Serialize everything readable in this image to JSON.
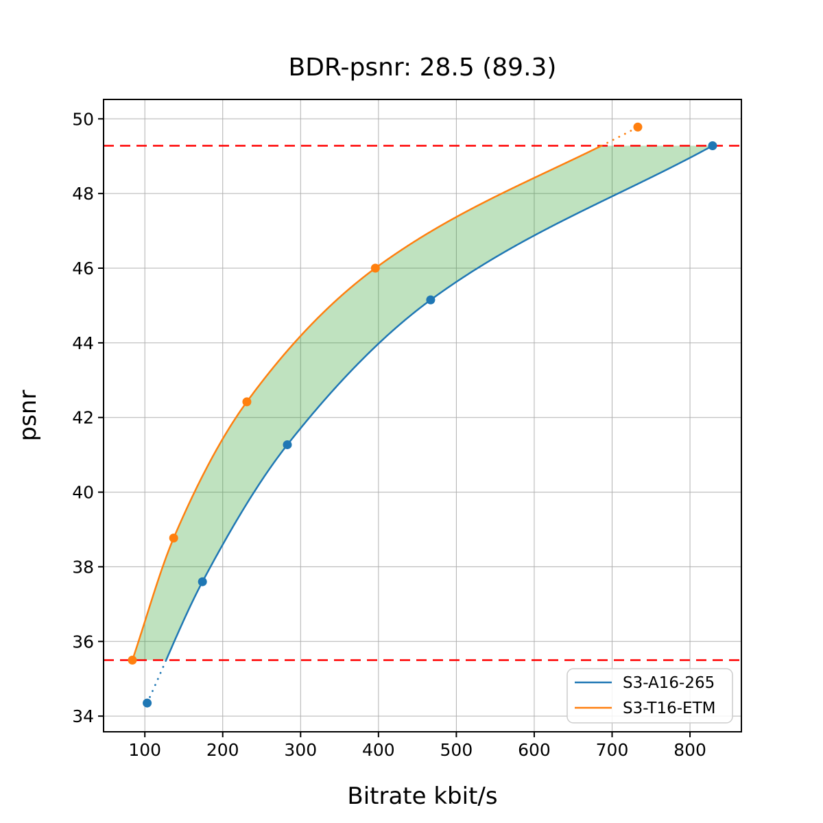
{
  "chart_data": {
    "type": "line",
    "title": "BDR-psnr: 28.5 (89.3)",
    "xlabel": "Bitrate kbit/s",
    "ylabel": "psnr",
    "xlim": [
      47,
      866
    ],
    "ylim": [
      33.58,
      50.52
    ],
    "xticks": [
      100,
      200,
      300,
      400,
      500,
      600,
      700,
      800
    ],
    "yticks": [
      34,
      36,
      38,
      40,
      42,
      44,
      46,
      48,
      50
    ],
    "grid": true,
    "grid_color": "#b0b0b0",
    "legend_position": "lower right",
    "series": [
      {
        "name": "S3-A16-265",
        "color": "#1f77b4",
        "x": [
          103,
          174,
          283,
          467,
          829
        ],
        "y": [
          34.35,
          37.6,
          41.27,
          45.15,
          49.28
        ]
      },
      {
        "name": "S3-T16-ETM",
        "color": "#ff7f0e",
        "x": [
          84,
          137,
          231,
          396,
          733
        ],
        "y": [
          35.5,
          38.77,
          42.42,
          46.0,
          49.78
        ]
      }
    ],
    "integration_bounds": {
      "lower_psnr": 35.5,
      "upper_psnr": 49.28,
      "line_color": "#ff0000",
      "line_style": "dashed"
    },
    "fill_between": {
      "color": "#2ca02c",
      "opacity": 0.3
    },
    "out_of_range_style": "dotted"
  }
}
